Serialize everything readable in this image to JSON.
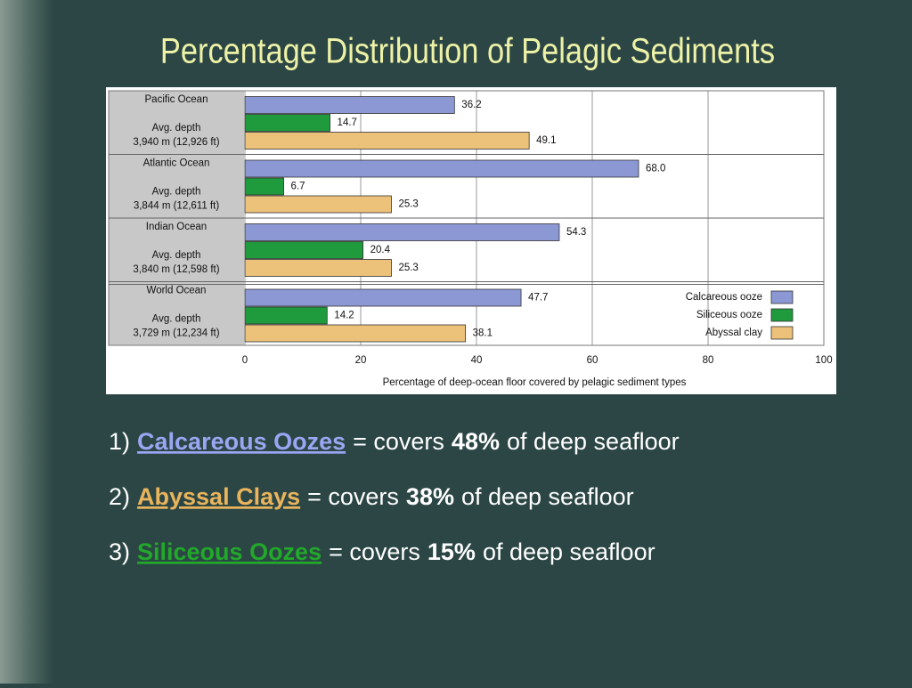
{
  "title": "Percentage Distribution of Pelagic Sediments",
  "chart_data": {
    "type": "hbar",
    "categories": [
      "Pacific Ocean",
      "Atlantic Ocean",
      "Indian Ocean",
      "World Ocean"
    ],
    "depth_label": "Avg. depth",
    "depths": [
      "3,940 m (12,926 ft)",
      "3,844 m (12,611 ft)",
      "3,840 m (12,598 ft)",
      "3,729 m (12,234 ft)"
    ],
    "series": [
      {
        "name": "Calcareous ooze",
        "color": "#8c98d4",
        "values": [
          36.2,
          68.0,
          54.3,
          47.7
        ],
        "value_labels": [
          "36.2",
          "68.0",
          "54.3",
          "47.7"
        ]
      },
      {
        "name": "Siliceous ooze",
        "color": "#1f9a3c",
        "values": [
          14.7,
          6.7,
          20.4,
          14.2
        ],
        "value_labels": [
          "14.7",
          "6.7",
          "20.4",
          "14.2"
        ]
      },
      {
        "name": "Abyssal clay",
        "color": "#ecc27a",
        "values": [
          49.1,
          25.3,
          25.3,
          38.1
        ],
        "value_labels": [
          "49.1",
          "25.3",
          "25.3",
          "38.1"
        ]
      }
    ],
    "xlim": [
      0,
      100
    ],
    "xticks": [
      0,
      20,
      40,
      60,
      80,
      100
    ],
    "xlabel": "Percentage of deep-ocean floor covered by pelagic sediment types",
    "grid": true,
    "legend": "lower right"
  },
  "bullets": [
    {
      "number": "1)",
      "term": "Calcareous Oozes",
      "verb": "= covers",
      "amount": "48%",
      "rest": "of deep seafloor"
    },
    {
      "number": "2)",
      "term": "Abyssal Clays",
      "verb": "= covers",
      "amount": "38%",
      "rest": "of deep seafloor"
    },
    {
      "number": "3)",
      "term": "Siliceous Oozes",
      "verb": "= covers",
      "amount": "15%",
      "rest": "of deep seafloor"
    }
  ]
}
